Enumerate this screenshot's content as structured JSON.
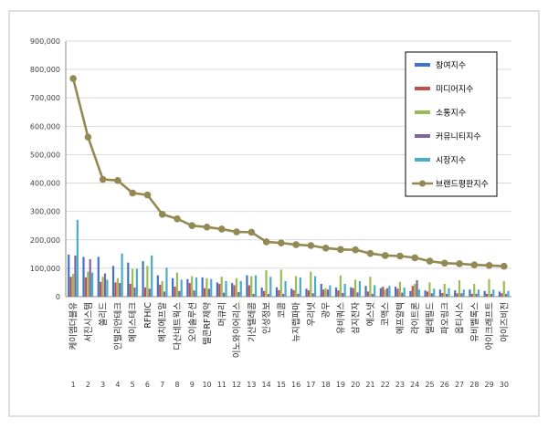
{
  "chart_data": {
    "type": "bar",
    "title": "",
    "xlabel": "",
    "ylabel": "",
    "ylim": [
      0,
      900000
    ],
    "y_ticks": [
      "0",
      "100,000",
      "200,000",
      "300,000",
      "400,000",
      "500,000",
      "600,000",
      "700,000",
      "800,000",
      "900,000"
    ],
    "grid": true,
    "legend_position": "top-right",
    "categories": [
      "1",
      "2",
      "3",
      "4",
      "5",
      "6",
      "7",
      "8",
      "9",
      "10",
      "11",
      "12",
      "13",
      "14",
      "15",
      "16",
      "17",
      "18",
      "19",
      "20",
      "21",
      "22",
      "23",
      "24",
      "25",
      "26",
      "27",
      "28",
      "29",
      "30"
    ],
    "company_names": [
      "케이엠더블유",
      "서진시스템",
      "쏠리드",
      "인텔리안테크",
      "에이스테크",
      "RFHIC",
      "에치에프알",
      "다산네트웍스",
      "오이솔루션",
      "텔콘RF제약",
      "머큐리",
      "이노와이어리스",
      "기산텔레콤",
      "인성정보",
      "코콤",
      "뉴지랩파마",
      "우리넷",
      "광무",
      "유비쿼스",
      "삼지전자",
      "에스넷",
      "코맥스",
      "에프알텍",
      "라이트론",
      "텔레필드",
      "파오링크",
      "옵티시스",
      "유비벨록스",
      "아이크래프트",
      "아이즈비전"
    ],
    "series": [
      {
        "name": "참여지수",
        "color": "#4472c4",
        "values": [
          148000,
          140000,
          140000,
          108000,
          120000,
          125000,
          75000,
          65000,
          62000,
          68000,
          50000,
          48000,
          75000,
          32000,
          33000,
          28000,
          28000,
          45000,
          32000,
          33000,
          38000,
          30000,
          35000,
          20000,
          22000,
          25000,
          22000,
          25000,
          20000,
          18000
        ]
      },
      {
        "name": "미디어지수",
        "color": "#c0504d",
        "values": [
          70000,
          68000,
          52000,
          50000,
          45000,
          32000,
          42000,
          35000,
          48000,
          30000,
          45000,
          40000,
          40000,
          20000,
          23000,
          23000,
          22000,
          25000,
          22000,
          30000,
          18000,
          35000,
          28000,
          38000,
          18000,
          13000,
          12000,
          10000,
          10000,
          12000
        ]
      },
      {
        "name": "소통지수",
        "color": "#9bbb59",
        "values": [
          80000,
          88000,
          70000,
          65000,
          98000,
          108000,
          55000,
          85000,
          72000,
          65000,
          70000,
          65000,
          72000,
          93000,
          95000,
          72000,
          88000,
          30000,
          75000,
          60000,
          70000,
          25000,
          52000,
          45000,
          50000,
          45000,
          58000,
          45000,
          62000,
          55000
        ]
      },
      {
        "name": "커뮤니티지수",
        "color": "#8064a2",
        "values": [
          145000,
          132000,
          82000,
          48000,
          32000,
          28000,
          18000,
          20000,
          22000,
          28000,
          14000,
          16000,
          10000,
          10000,
          10000,
          10000,
          12000,
          25000,
          13000,
          15000,
          10000,
          30000,
          14000,
          58000,
          12000,
          10000,
          12000,
          10000,
          10000,
          10000
        ]
      },
      {
        "name": "시장지수",
        "color": "#4bacc6",
        "values": [
          270000,
          85000,
          60000,
          152000,
          98000,
          145000,
          102000,
          60000,
          68000,
          62000,
          55000,
          55000,
          75000,
          70000,
          55000,
          68000,
          72000,
          40000,
          45000,
          55000,
          40000,
          38000,
          32000,
          25000,
          28000,
          30000,
          25000,
          25000,
          25000,
          20000
        ]
      }
    ],
    "line_series": {
      "name": "브랜드평판지수",
      "color": "#938953",
      "values": [
        768000,
        562000,
        413000,
        409000,
        365000,
        358000,
        290000,
        274000,
        250000,
        245000,
        238000,
        228000,
        227000,
        193000,
        189000,
        183000,
        180000,
        171000,
        166000,
        165000,
        152000,
        145000,
        143000,
        137000,
        125000,
        118000,
        116000,
        112000,
        110000,
        107000
      ]
    }
  }
}
